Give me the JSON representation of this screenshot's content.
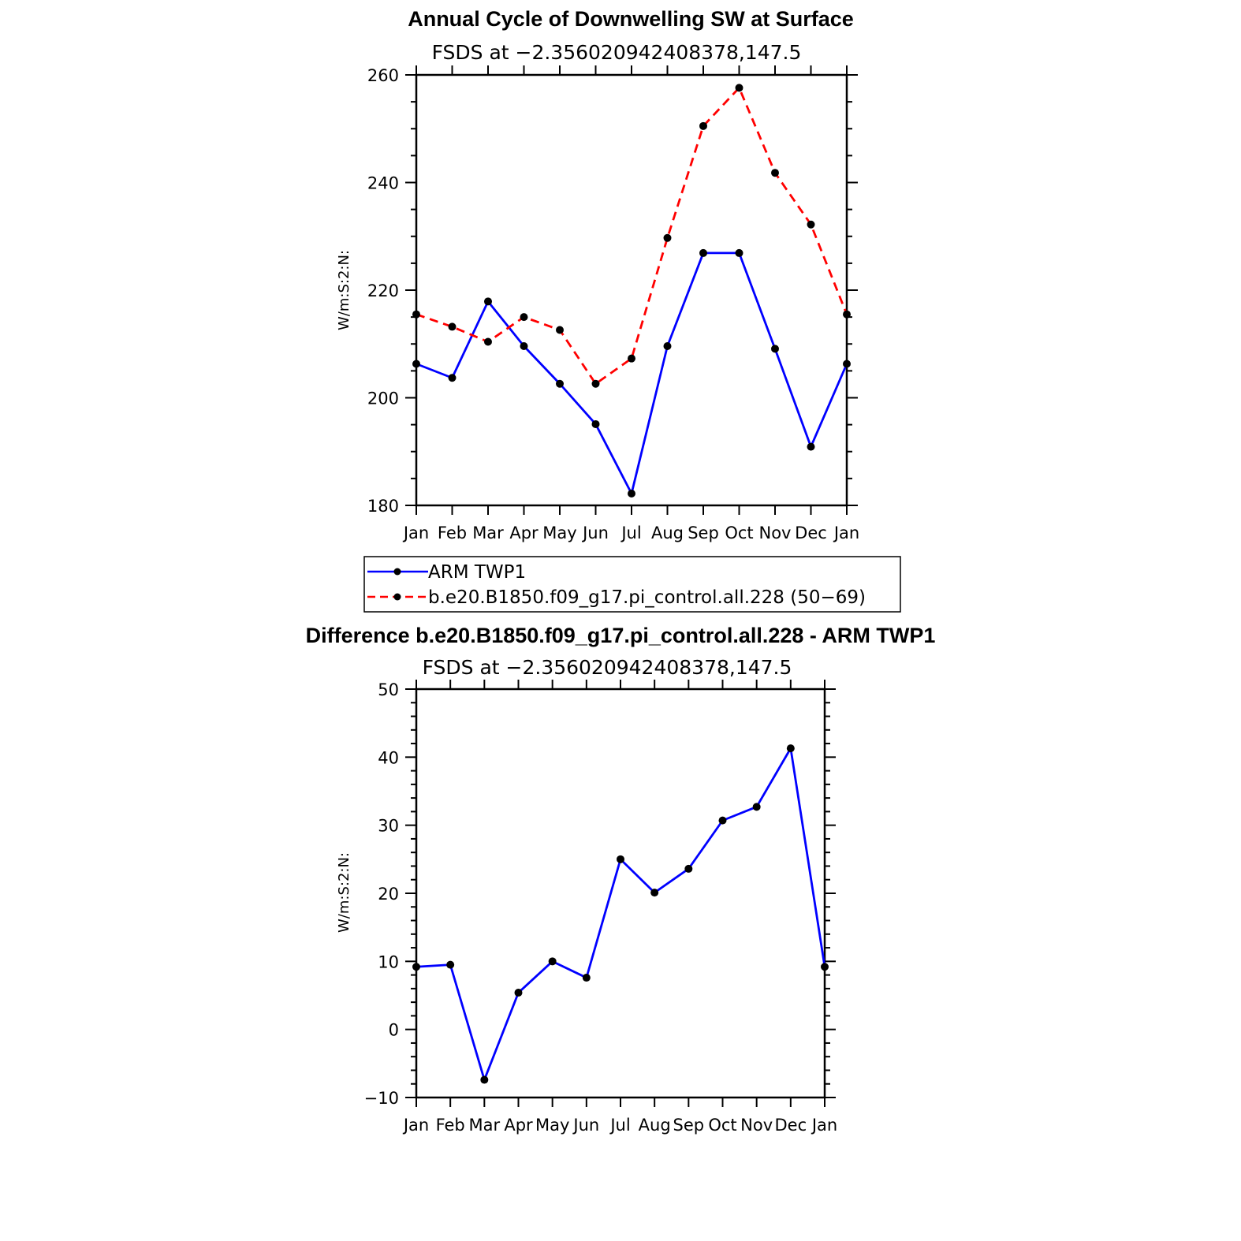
{
  "chart_data": [
    {
      "type": "line",
      "title": "Annual Cycle of Downwelling SW at Surface",
      "subtitle": "FSDS at −2.356020942408378,147.5",
      "ylabel": "W/m:S:2:N:",
      "xlabel": "",
      "categories": [
        "Jan",
        "Feb",
        "Mar",
        "Apr",
        "May",
        "Jun",
        "Jul",
        "Aug",
        "Sep",
        "Oct",
        "Nov",
        "Dec",
        "Jan"
      ],
      "ylim": [
        180,
        260
      ],
      "yticks": [
        "180",
        "200",
        "220",
        "240",
        "260"
      ],
      "series": [
        {
          "name": "ARM TWP1",
          "color": "#0000ff",
          "dash": "solid",
          "values": [
            206.3,
            203.7,
            217.9,
            209.6,
            202.6,
            195.1,
            182.2,
            209.6,
            226.9,
            226.9,
            209.1,
            190.9,
            206.3
          ]
        },
        {
          "name": "b.e20.B1850.f09_g17.pi_control.all.228 (50−69)",
          "color": "#ff0000",
          "dash": "dashed",
          "values": [
            215.5,
            213.2,
            210.4,
            215.0,
            212.6,
            202.6,
            207.3,
            229.7,
            250.5,
            257.6,
            241.8,
            232.2,
            215.5
          ]
        }
      ],
      "legend_position": "below",
      "grid": false
    },
    {
      "type": "line",
      "title": "Difference b.e20.B1850.f09_g17.pi_control.all.228 - ARM TWP1",
      "subtitle": "FSDS at −2.356020942408378,147.5",
      "ylabel": "W/m:S:2:N:",
      "xlabel": "",
      "categories": [
        "Jan",
        "Feb",
        "Mar",
        "Apr",
        "May",
        "Jun",
        "Jul",
        "Aug",
        "Sep",
        "Oct",
        "Nov",
        "Dec",
        "Jan"
      ],
      "ylim": [
        -10,
        50
      ],
      "yticks": [
        "−10",
        "0",
        "10",
        "20",
        "30",
        "40",
        "50"
      ],
      "series": [
        {
          "color": "#0000ff",
          "dash": "solid",
          "values": [
            9.2,
            9.5,
            -7.4,
            5.4,
            10.0,
            7.6,
            25.0,
            20.1,
            23.6,
            30.7,
            32.7,
            41.3,
            9.2
          ]
        }
      ],
      "grid": false
    }
  ]
}
